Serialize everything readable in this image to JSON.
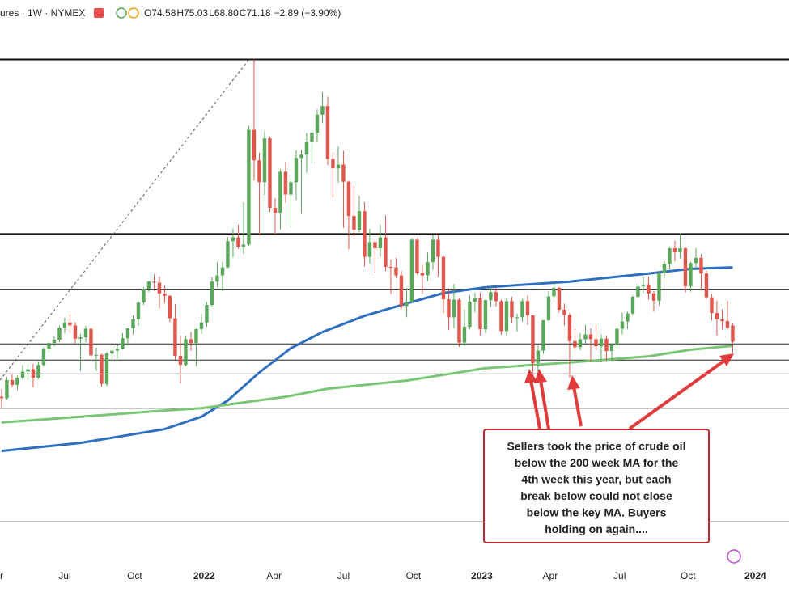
{
  "header": {
    "symbol": "ures · 1W · NYMEX",
    "ohlc": [
      {
        "label": "O",
        "value": "74.58"
      },
      {
        "label": "H",
        "value": "75.03"
      },
      {
        "label": "L",
        "value": "68.80"
      },
      {
        "label": "C",
        "value": "71.18"
      }
    ],
    "change": "−2.89 (−3.90%)"
  },
  "chart_data": {
    "type": "candlestick",
    "up_color": "#5aa65a",
    "down_color": "#e0564c",
    "xlim": [
      -0.3,
      149.7
    ],
    "ylim": [
      24,
      143
    ],
    "xticks": [
      {
        "value": 0,
        "label": "r"
      },
      {
        "value": 12,
        "label": "Jul"
      },
      {
        "value": 25.3,
        "label": "Oct"
      },
      {
        "value": 38.5,
        "label": "2022"
      },
      {
        "value": 51.8,
        "label": "Apr"
      },
      {
        "value": 65,
        "label": "Jul"
      },
      {
        "value": 78.3,
        "label": "Oct"
      },
      {
        "value": 91.3,
        "label": "2023"
      },
      {
        "value": 104.3,
        "label": "Apr"
      },
      {
        "value": 117.5,
        "label": "Jul"
      },
      {
        "value": 130.5,
        "label": "Oct"
      },
      {
        "value": 143.3,
        "label": "2024"
      }
    ],
    "hlines_bold": [
      130.5,
      93.8
    ],
    "hlines": [
      82.2,
      70.7,
      67.3,
      64.4,
      57.2,
      33.3
    ],
    "open": [
      59.6,
      59.3,
      63.1,
      62.1,
      63.6,
      64.9,
      65.4,
      63.6,
      66.3,
      69.6,
      70.9,
      71.6,
      74.1,
      75.2,
      74.6,
      71.8,
      72.1,
      73.9,
      68.3,
      68.4,
      62.3,
      68.7,
      69.3,
      69.7,
      71.9,
      74.0,
      75.9,
      79.4,
      82.3,
      83.8,
      83.6,
      81.3,
      80.8,
      76.1,
      68.2,
      66.3,
      71.7,
      70.9,
      73.8,
      75.2,
      78.9,
      83.8,
      85.1,
      86.8,
      92.3,
      93.1,
      91.1,
      91.6,
      115.7,
      109.3,
      104.7,
      113.9,
      99.3,
      98.3,
      106.9,
      102.1,
      104.7,
      109.8,
      110.5,
      113.2,
      115.1,
      118.9,
      120.7,
      109.6,
      107.6,
      108.4,
      104.8,
      97.6,
      94.7,
      98.6,
      89.0,
      92.1,
      90.8,
      93.1,
      86.9,
      86.8,
      85.1,
      78.7,
      79.5,
      92.6,
      85.6,
      85.1,
      87.9,
      92.6,
      89.0,
      80.1,
      76.3,
      80.0,
      71.0,
      74.3,
      79.6,
      80.3,
      73.8,
      79.9,
      81.6,
      79.7,
      73.4,
      79.7,
      76.3,
      76.3,
      79.7,
      76.7,
      66.7,
      69.3,
      75.7,
      80.7,
      82.5,
      77.9,
      76.8,
      71.3,
      70.0,
      71.7,
      72.7,
      71.7,
      70.2,
      71.8,
      69.2,
      70.6,
      73.9,
      75.4,
      77.1,
      80.6,
      82.8,
      83.2,
      81.3,
      79.8,
      85.6,
      87.5,
      90.8,
      90.0,
      90.8,
      82.8,
      87.7,
      88.8,
      85.5,
      80.5,
      77.2,
      75.9,
      75.5,
      74.58
    ],
    "high": [
      61.2,
      63.8,
      64.5,
      64.0,
      66.3,
      66.4,
      66.5,
      66.9,
      70.0,
      71.0,
      72.2,
      74.5,
      76.2,
      76.9,
      75.3,
      72.8,
      74.5,
      74.0,
      69.9,
      68.7,
      69.0,
      70.0,
      70.5,
      73.0,
      74.0,
      76.7,
      79.8,
      82.6,
      84.0,
      85.4,
      84.9,
      82.9,
      81.0,
      79.1,
      72.4,
      72.4,
      73.2,
      74.0,
      77.0,
      79.5,
      84.8,
      87.9,
      88.0,
      93.2,
      94.9,
      95.8,
      100.5,
      116.6,
      130.5,
      110.9,
      115.4,
      114.3,
      101.3,
      107.4,
      109.0,
      105.6,
      111.4,
      111.5,
      115.0,
      115.6,
      120.0,
      123.7,
      122.7,
      111.0,
      112.2,
      111.3,
      105.0,
      104.0,
      101.9,
      100.5,
      94.9,
      92.7,
      95.8,
      97.7,
      88.4,
      88.8,
      86.1,
      82.4,
      93.0,
      92.9,
      87.3,
      89.9,
      93.7,
      93.7,
      89.3,
      82.4,
      83.3,
      80.4,
      77.9,
      80.9,
      81.5,
      81.5,
      80.0,
      82.7,
      82.5,
      80.0,
      80.3,
      80.6,
      77.1,
      80.2,
      80.9,
      76.8,
      70.3,
      75.7,
      81.8,
      83.5,
      82.7,
      79.2,
      77.2,
      73.8,
      73.0,
      74.7,
      74.0,
      74.8,
      72.7,
      72.4,
      70.8,
      74.1,
      77.3,
      77.5,
      80.9,
      83.5,
      84.9,
      84.9,
      81.8,
      86.1,
      88.1,
      91.1,
      92.4,
      94.0,
      91.0,
      88.0,
      90.8,
      89.6,
      86.1,
      81.2,
      79.8,
      78.0,
      79.7,
      75.03
    ],
    "low": [
      57.3,
      59.0,
      61.6,
      61.0,
      63.2,
      63.1,
      61.6,
      63.3,
      66.0,
      68.9,
      70.2,
      71.1,
      73.0,
      73.0,
      70.8,
      65.0,
      71.0,
      67.6,
      65.0,
      61.7,
      61.9,
      67.0,
      67.6,
      69.5,
      70.5,
      72.7,
      74.5,
      78.9,
      81.6,
      81.9,
      78.2,
      79.3,
      75.2,
      67.4,
      62.4,
      66.0,
      69.3,
      66.0,
      72.8,
      74.3,
      78.5,
      82.7,
      81.8,
      86.6,
      88.9,
      90.7,
      89.6,
      91.3,
      105.1,
      93.5,
      102.0,
      98.4,
      93.5,
      94.8,
      100.4,
      95.3,
      101.0,
      98.2,
      106.7,
      108.6,
      113.0,
      117.1,
      108.3,
      101.5,
      104.6,
      95.1,
      90.6,
      93.3,
      94.2,
      87.0,
      87.6,
      85.7,
      89.0,
      86.0,
      81.2,
      84.6,
      78.0,
      76.3,
      79.3,
      85.3,
      81.3,
      83.9,
      86.3,
      84.8,
      77.2,
      73.6,
      74.0,
      70.1,
      70.3,
      73.8,
      77.3,
      72.5,
      73.0,
      78.5,
      78.6,
      72.6,
      72.3,
      75.0,
      73.3,
      75.4,
      74.7,
      64.1,
      64.4,
      68.6,
      75.5,
      79.4,
      77.3,
      74.6,
      63.6,
      69.5,
      69.4,
      70.7,
      67.0,
      69.4,
      66.8,
      67.1,
      67.1,
      69.6,
      72.7,
      73.8,
      76.8,
      80.4,
      81.4,
      80.0,
      77.6,
      78.8,
      84.5,
      86.4,
      88.1,
      88.7,
      81.5,
      81.7,
      86.2,
      82.1,
      80.1,
      75.6,
      72.4,
      73.8,
      73.8,
      68.8
    ],
    "close": [
      59.3,
      63.1,
      62.1,
      63.6,
      64.9,
      65.4,
      63.6,
      66.3,
      69.6,
      70.9,
      71.6,
      74.1,
      75.2,
      74.6,
      71.8,
      72.1,
      73.9,
      68.3,
      68.4,
      62.3,
      68.7,
      69.3,
      69.7,
      71.9,
      74.0,
      75.9,
      79.4,
      82.3,
      83.8,
      83.6,
      81.3,
      80.8,
      76.1,
      68.2,
      66.3,
      71.7,
      70.9,
      73.8,
      75.2,
      78.9,
      83.8,
      85.1,
      86.8,
      92.3,
      93.1,
      91.1,
      91.6,
      115.7,
      109.3,
      104.7,
      113.9,
      99.3,
      98.3,
      106.9,
      102.1,
      104.7,
      109.8,
      110.5,
      113.2,
      115.1,
      118.9,
      120.7,
      109.6,
      107.6,
      108.4,
      104.8,
      97.6,
      94.7,
      98.6,
      89.0,
      92.1,
      90.8,
      93.1,
      86.9,
      86.8,
      85.1,
      78.7,
      79.5,
      92.6,
      85.6,
      85.1,
      87.9,
      92.6,
      89.0,
      80.1,
      76.3,
      80.0,
      71.0,
      74.3,
      79.6,
      80.3,
      73.8,
      79.9,
      81.6,
      79.7,
      73.4,
      79.7,
      76.3,
      76.3,
      79.7,
      76.7,
      66.7,
      69.3,
      75.7,
      80.7,
      82.5,
      77.9,
      76.8,
      71.3,
      70.0,
      71.7,
      72.7,
      71.7,
      70.2,
      71.8,
      69.2,
      70.6,
      73.9,
      75.4,
      77.1,
      80.6,
      82.8,
      83.2,
      81.3,
      79.8,
      85.6,
      87.5,
      90.8,
      90.0,
      90.8,
      82.8,
      87.7,
      88.8,
      85.5,
      80.5,
      77.2,
      75.9,
      75.5,
      74.1,
      71.18
    ],
    "series": [
      {
        "color": "#2f6fc0",
        "x": [
          0,
          15,
          31,
          38,
          43,
          49,
          55,
          61,
          69,
          77,
          84,
          92,
          108,
          123,
          131,
          139
        ],
        "values": [
          48.2,
          49.9,
          52.8,
          55.4,
          58.8,
          64.7,
          69.8,
          73.2,
          76.6,
          79.2,
          81.4,
          82.6,
          83.8,
          85.5,
          86.5,
          86.8
        ]
      },
      {
        "color": "#7cc576",
        "x": [
          0,
          15,
          31,
          38,
          46,
          54,
          62,
          77,
          92,
          108,
          123,
          131,
          139
        ],
        "values": [
          54.2,
          55.4,
          56.7,
          57.2,
          58.4,
          59.6,
          61.3,
          63.0,
          65.6,
          66.8,
          68.1,
          69.5,
          70.3
        ]
      }
    ]
  },
  "annotation": [
    "Sellers took the price of crude oil",
    "below the 200 week MA for the",
    "4th week this year, but each",
    "break below could not close",
    "below the key MA.  Buyers",
    "holding on again...."
  ]
}
